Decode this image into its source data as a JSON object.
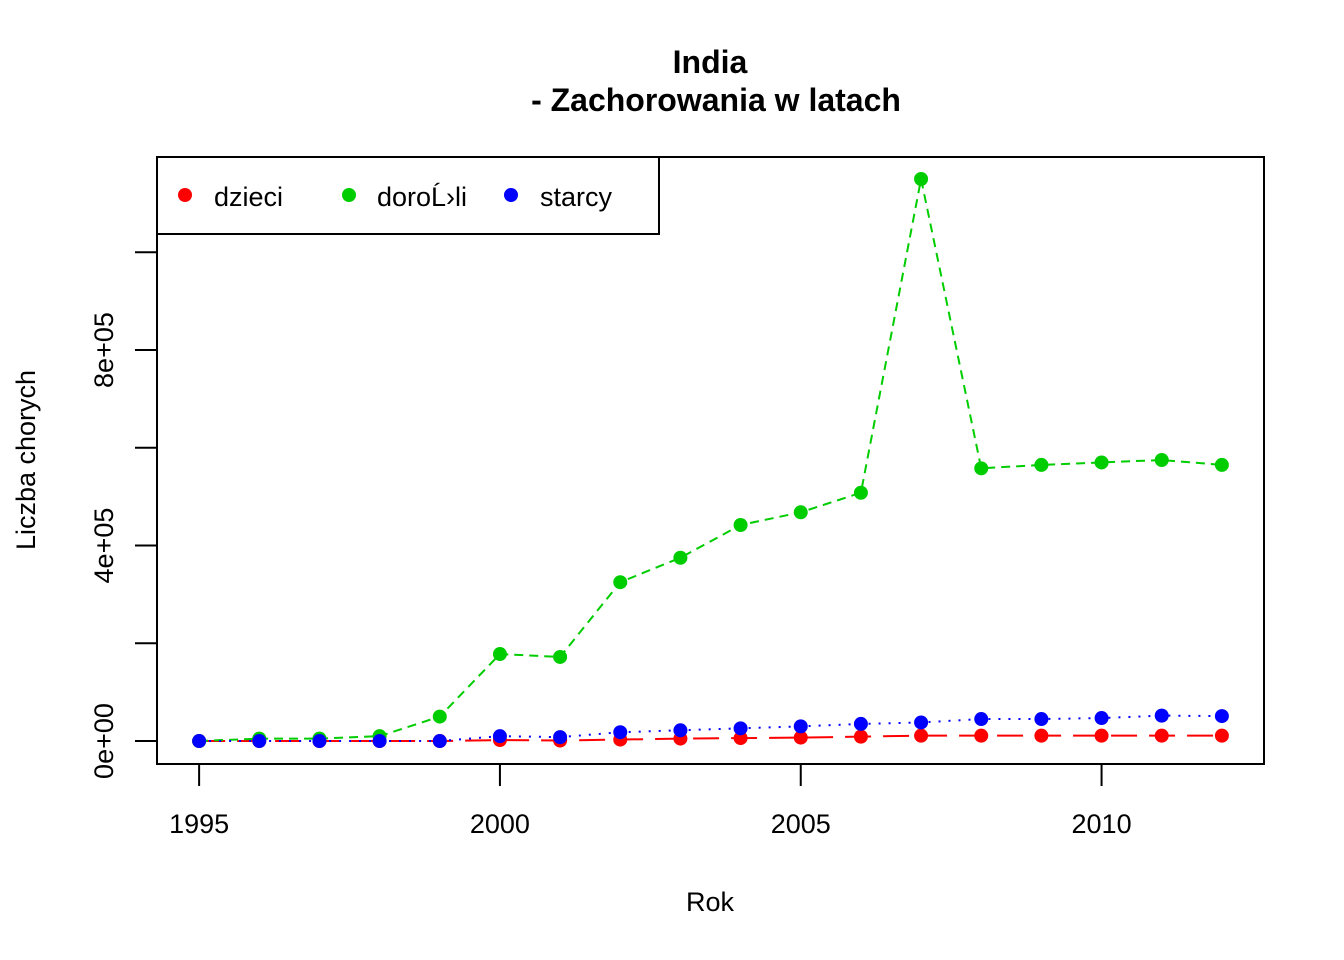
{
  "chart_data": {
    "type": "line",
    "title_line1": "India",
    "title_line2": "- Zachorowania w latach",
    "xlabel": "Rok",
    "ylabel": "Liczba chorych",
    "xlim": [
      1994.3,
      2012.7
    ],
    "ylim": [
      -47000,
      1195000
    ],
    "x_ticks": [
      1995,
      2000,
      2005,
      2010
    ],
    "y_ticks_minor": [
      0,
      200000,
      400000,
      600000,
      800000,
      1000000
    ],
    "y_ticks_labeled": [
      {
        "value": 0,
        "label": "0e+00"
      },
      {
        "value": 400000,
        "label": "4e+05"
      },
      {
        "value": 800000,
        "label": "8e+05"
      }
    ],
    "x": [
      1995,
      1996,
      1997,
      1998,
      1999,
      2000,
      2001,
      2002,
      2003,
      2004,
      2005,
      2006,
      2007,
      2008,
      2009,
      2010,
      2011,
      2012
    ],
    "series": [
      {
        "name": "dzieci",
        "color": "#ff0000",
        "line_style": "longdash",
        "values": [
          0,
          0,
          0,
          0,
          0,
          2000,
          1000,
          3000,
          5000,
          6000,
          7000,
          9000,
          11000,
          11000,
          11000,
          11000,
          11000,
          11000
        ]
      },
      {
        "name": "doroĹ›li",
        "color": "#00cd00",
        "line_style": "dashed",
        "values": [
          0,
          5000,
          5000,
          10000,
          50000,
          178000,
          172000,
          325000,
          375000,
          442000,
          468000,
          508000,
          1150000,
          558000,
          565000,
          570000,
          575000,
          565000
        ]
      },
      {
        "name": "starcy",
        "color": "#0000ff",
        "line_style": "dotted",
        "values": [
          0,
          0,
          0,
          0,
          0,
          10000,
          8000,
          18000,
          22000,
          26000,
          30000,
          35000,
          38000,
          45000,
          45000,
          47000,
          52000,
          51000
        ]
      }
    ],
    "legend_position": "top-left"
  }
}
